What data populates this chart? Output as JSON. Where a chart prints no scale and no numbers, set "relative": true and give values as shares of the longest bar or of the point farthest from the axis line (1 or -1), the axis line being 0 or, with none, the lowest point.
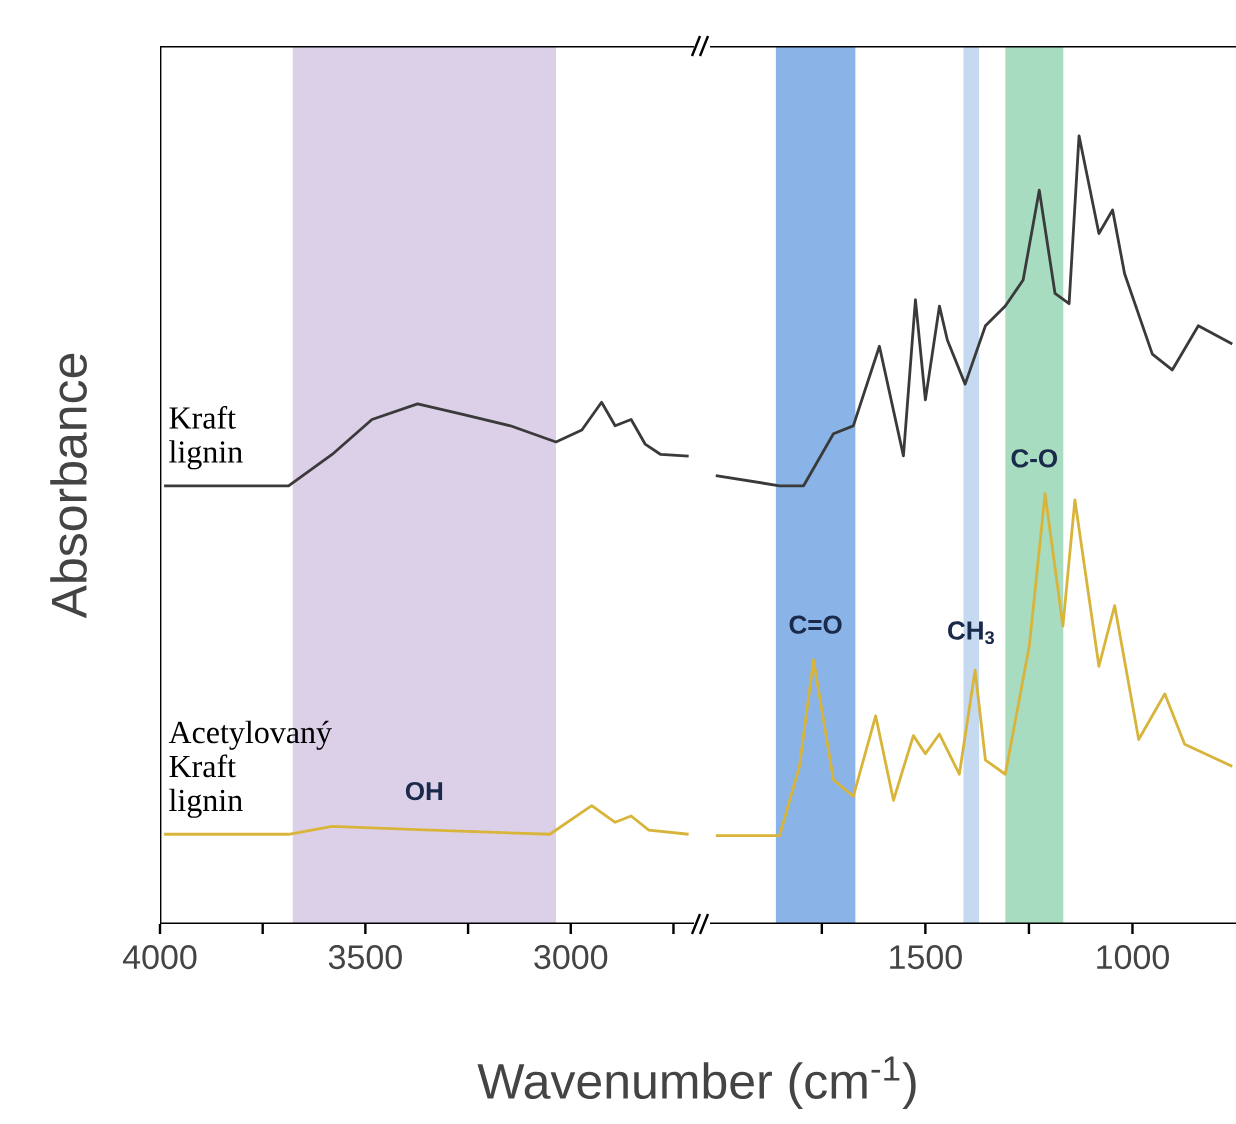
{
  "chart_data": [
    {
      "type": "line",
      "relative": true,
      "xlabel": "Wavenumber (cm$^{-1}$)",
      "ylabel": "Absorbance",
      "xlim": [
        4000,
        2700
      ],
      "xticks": [
        4000,
        {
          "value": 3750,
          "label": null
        },
        3500,
        {
          "value": 3250,
          "label": null
        },
        3000,
        {
          "value": 2750,
          "label": null
        }
      ],
      "tick_labels": "x",
      "bands": [
        {
          "axis": "x",
          "from": 3677,
          "to": 3036,
          "label": "OH",
          "color": "#dcd0e8"
        }
      ],
      "series": [
        {
          "name": "Kraft lignin",
          "color": "#3a3a3a",
          "x": [
            3990,
            3687,
            3581,
            3484,
            3373,
            3263,
            3147,
            3036,
            2973,
            2925,
            2892,
            2853,
            2819,
            2781,
            2713
          ],
          "values": [
            0.84,
            0.84,
            0.9,
            0.967,
            0.997,
            0.977,
            0.955,
            0.924,
            0.947,
            1.0,
            0.955,
            0.967,
            0.92,
            0.9,
            0.897
          ]
        },
        {
          "name": "Acetylovaný Kraft lignin",
          "color": "#d9b43a",
          "x": [
            3990,
            3687,
            3581,
            3373,
            3051,
            2949,
            2892,
            2853,
            2810,
            2713
          ],
          "values": [
            0.172,
            0.172,
            0.187,
            0.181,
            0.172,
            0.227,
            0.195,
            0.207,
            0.18,
            0.172
          ]
        }
      ]
    },
    {
      "type": "line",
      "relative": true,
      "xlim": [
        2020,
        750
      ],
      "xticks": [
        {
          "value": 1750,
          "label": null
        },
        1500,
        {
          "value": 1250,
          "label": null
        },
        1000
      ],
      "tick_labels": "x",
      "bands": [
        {
          "axis": "x",
          "from": 1861,
          "to": 1669,
          "label": "C=O",
          "color": "#8ab4e8"
        },
        {
          "axis": "x",
          "from": 1408,
          "to": 1370,
          "label": "CH$_{3}$",
          "color": "#c5d9f1"
        },
        {
          "axis": "x",
          "from": 1307,
          "to": 1167,
          "label": "C-O",
          "color": "#a8dcc0"
        }
      ],
      "series": [
        {
          "color": "#3a3a3a",
          "x": [
            2006,
            1852,
            1794,
            1722,
            1674,
            1611,
            1553,
            1524,
            1500,
            1466,
            1447,
            1404,
            1355,
            1307,
            1264,
            1225,
            1187,
            1153,
            1129,
            1081,
            1048,
            1019,
            952,
            904,
            841,
            759
          ],
          "values": [
            0.569,
            0.556,
            0.556,
            0.622,
            0.632,
            0.733,
            0.594,
            0.792,
            0.665,
            0.784,
            0.741,
            0.685,
            0.759,
            0.784,
            0.817,
            0.931,
            0.8,
            0.787,
            1.0,
            0.876,
            0.906,
            0.825,
            0.723,
            0.703,
            0.759,
            0.736
          ]
        },
        {
          "color": "#d9b43a",
          "x": [
            2006,
            1852,
            1804,
            1770,
            1722,
            1674,
            1620,
            1577,
            1529,
            1500,
            1466,
            1418,
            1380,
            1355,
            1307,
            1249,
            1211,
            1168,
            1139,
            1081,
            1043,
            985,
            922,
            874,
            759
          ],
          "values": [
            0.112,
            0.112,
            0.2,
            0.335,
            0.183,
            0.162,
            0.264,
            0.157,
            0.239,
            0.216,
            0.241,
            0.19,
            0.322,
            0.208,
            0.19,
            0.353,
            0.546,
            0.378,
            0.538,
            0.327,
            0.404,
            0.234,
            0.292,
            0.228,
            0.2
          ]
        }
      ]
    }
  ]
}
